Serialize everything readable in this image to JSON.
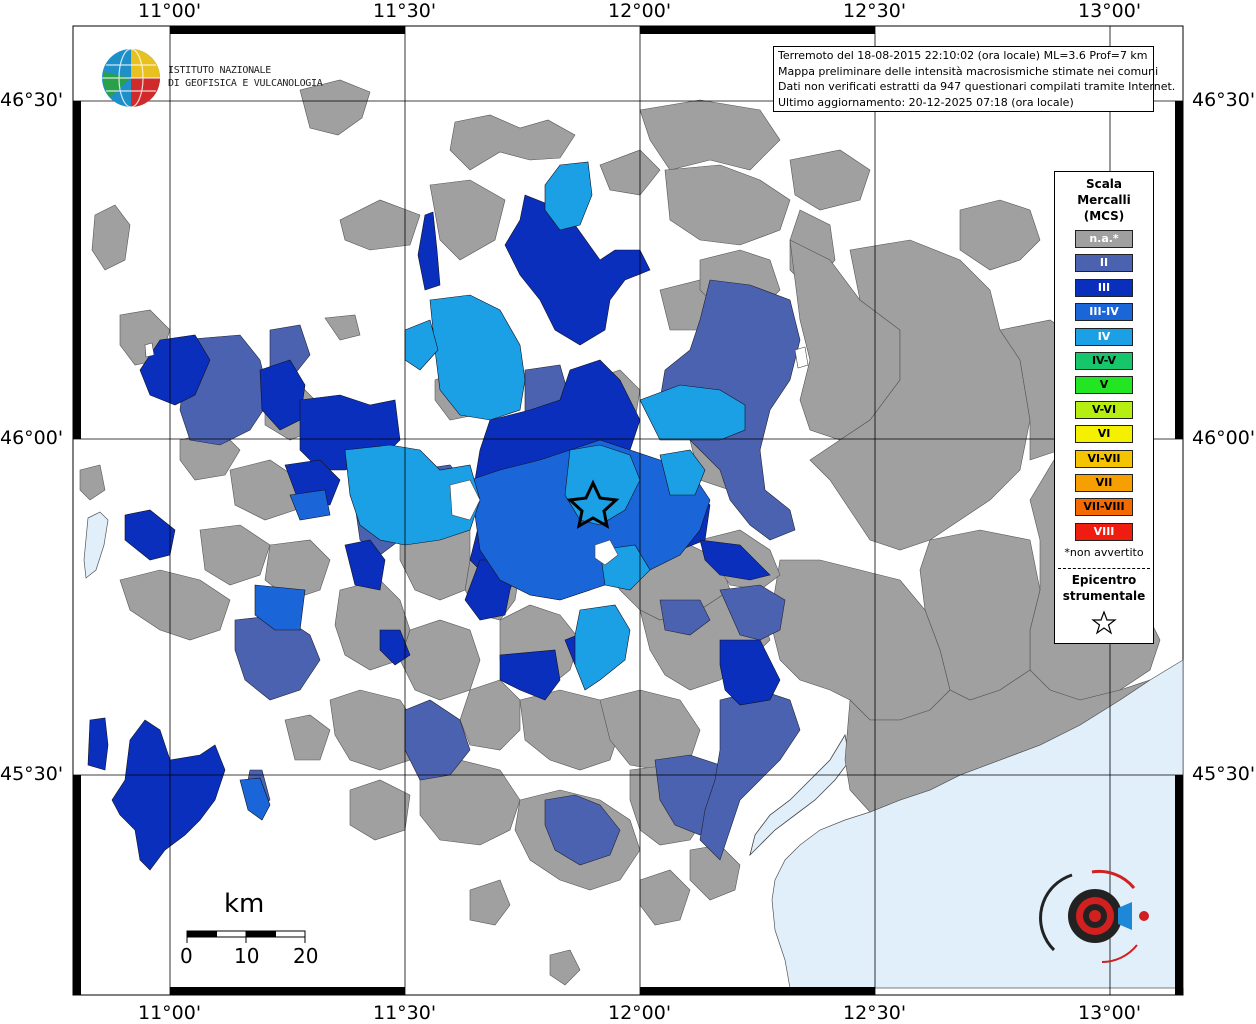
{
  "header": {
    "lines": [
      "Terremoto del 18-08-2015 22:10:02 (ora locale) ML=3.6 Prof=7 km",
      "Mappa preliminare delle intensità macrosismiche stimate nei comuni",
      "Dati non verificati estratti da 947 questionari compilati tramite Internet.",
      "Ultimo aggiornamento: 20-12-2025 07:18 (ora locale)"
    ]
  },
  "logo": {
    "line1": "ISTITUTO NAZIONALE",
    "line2": "DI GEOFISICA E VULCANOLOGIA"
  },
  "axes": {
    "longitude_ticks": [
      "11°00'",
      "11°30'",
      "12°00'",
      "12°30'",
      "13°00'"
    ],
    "latitude_ticks": [
      "46°30'",
      "46°00'",
      "45°30'"
    ]
  },
  "legend": {
    "title_lines": [
      "Scala",
      "Mercalli",
      "(MCS)"
    ],
    "items": [
      {
        "label": "n.a.*",
        "color": "#a0a0a0",
        "text_color": "#ffffff"
      },
      {
        "label": "II",
        "color": "#4a62b0",
        "text_color": "#ffffff"
      },
      {
        "label": "III",
        "color": "#0a2fbd",
        "text_color": "#ffffff"
      },
      {
        "label": "III-IV",
        "color": "#1a66d8",
        "text_color": "#ffffff"
      },
      {
        "label": "IV",
        "color": "#1ba0e6",
        "text_color": "#ffffff"
      },
      {
        "label": "IV-V",
        "color": "#17c56a",
        "text_color": "#000000"
      },
      {
        "label": "V",
        "color": "#22e622",
        "text_color": "#000000"
      },
      {
        "label": "V-VI",
        "color": "#b5ee10",
        "text_color": "#000000"
      },
      {
        "label": "VI",
        "color": "#f5f000",
        "text_color": "#000000"
      },
      {
        "label": "VI-VII",
        "color": "#f5c400",
        "text_color": "#000000"
      },
      {
        "label": "VII",
        "color": "#f5a000",
        "text_color": "#000000"
      },
      {
        "label": "VII-VIII",
        "color": "#f56a00",
        "text_color": "#000000"
      },
      {
        "label": "VIII",
        "color": "#f01c10",
        "text_color": "#ffffff"
      }
    ],
    "note": "*non avvertito",
    "epicenter_lines": [
      "Epicentro",
      "strumentale"
    ]
  },
  "scale_bar": {
    "unit": "km",
    "labels": [
      "0",
      "10",
      "20"
    ]
  },
  "colors": {
    "na": "#a0a0a0",
    "ii": "#4a62b0",
    "iii": "#0a2fbd",
    "iii_iv": "#1a66d8",
    "iv": "#1ba0e6",
    "sea": "#e0effa"
  }
}
